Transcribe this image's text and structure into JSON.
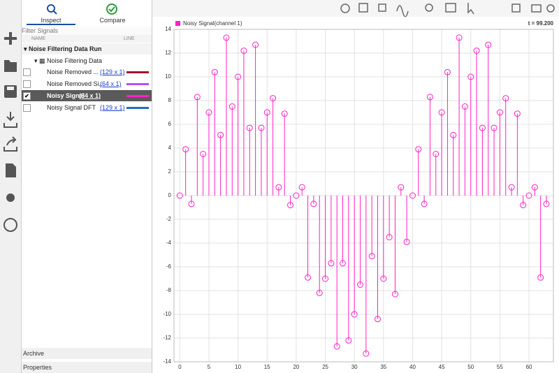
{
  "sidebar": {
    "tabs": [
      "Inspect",
      "Compare"
    ],
    "filter": "Filter Signals",
    "columns": [
      "NAME",
      "LINE"
    ],
    "run": "Noise Filtering Data Run",
    "group": "Noise Filtering Data",
    "signals": [
      {
        "name": "Noise Removed ...",
        "size": "(129 x 1)",
        "color": "#a3122c",
        "checked": false,
        "selected": false
      },
      {
        "name": "Noise Removed Si...",
        "size": "(64 x 1)",
        "color": "#b84ff0",
        "checked": false,
        "selected": false
      },
      {
        "name": "Noisy Signal",
        "size": "(64 x 1)",
        "color": "#ff1fc8",
        "checked": true,
        "selected": true
      },
      {
        "name": "Noisy Signal DFT",
        "size": "(129 x 1)",
        "color": "#1f6ec2",
        "checked": false,
        "selected": false
      }
    ],
    "archive": "Archive",
    "properties": "Properties"
  },
  "chart_data": {
    "type": "stem",
    "cursor": "t = 99.200",
    "grid": true,
    "legend": "top-left",
    "x": [
      0,
      1,
      2,
      3,
      4,
      5,
      6,
      7,
      8,
      9,
      10,
      11,
      12,
      13,
      14,
      15,
      16,
      17,
      18,
      19,
      20,
      21,
      22,
      23,
      24,
      25,
      26,
      27,
      28,
      29,
      30,
      31,
      32,
      33,
      34,
      35,
      36,
      37,
      38,
      39,
      40,
      41,
      42,
      43,
      44,
      45,
      46,
      47,
      48,
      49,
      50,
      51,
      52,
      53,
      54,
      55,
      56,
      57,
      58,
      59,
      60,
      61,
      62,
      63
    ],
    "series": [
      {
        "name": "Noisy Signal(channel 1)",
        "color": "#ff1fc8",
        "values": [
          0,
          3.9,
          -0.7,
          8.3,
          3.5,
          7.0,
          10.4,
          5.1,
          13.3,
          7.5,
          10.0,
          12.2,
          5.7,
          12.7,
          5.7,
          7.0,
          8.2,
          0.7,
          6.9,
          -0.8,
          0,
          0.7,
          -6.9,
          -0.7,
          -8.2,
          -7.0,
          -5.7,
          -12.7,
          -5.7,
          -12.2,
          -10.0,
          -7.5,
          -13.3,
          -5.1,
          -10.4,
          -7.0,
          -3.5,
          -8.3,
          0.7,
          -3.9,
          0,
          3.9,
          -0.7,
          8.3,
          3.5,
          7.0,
          10.4,
          5.1,
          13.3,
          7.5,
          10.0,
          12.2,
          5.7,
          12.7,
          5.7,
          7.0,
          8.2,
          0.7,
          6.9,
          -0.8,
          0,
          0.7,
          -6.9,
          -0.7
        ]
      }
    ],
    "xlim": [
      -1,
      64.2
    ],
    "xticks": [
      0,
      5,
      10,
      15,
      20,
      25,
      30,
      35,
      40,
      45,
      50,
      55,
      60
    ],
    "ylim": [
      -14,
      14
    ],
    "yticks": [
      -14,
      -12,
      -10,
      -8,
      -6,
      -4,
      -2,
      0,
      2,
      4,
      6,
      8,
      10,
      12,
      14
    ]
  }
}
